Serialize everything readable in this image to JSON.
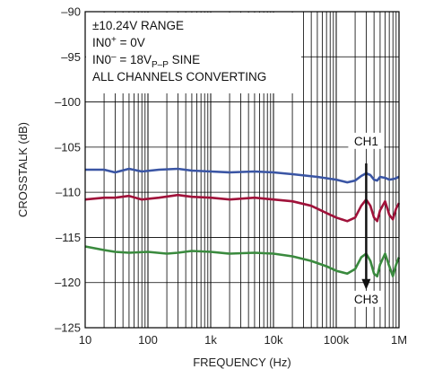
{
  "chart_data": {
    "type": "line",
    "xlabel": "FREQUENCY (Hz)",
    "ylabel": "CROSSTALK (dB)",
    "x_scale": "log",
    "xlim": [
      10,
      1000000
    ],
    "ylim": [
      -125,
      -90
    ],
    "x_ticks": [
      10,
      100,
      1000,
      10000,
      100000,
      1000000
    ],
    "x_tick_labels": [
      "10",
      "100",
      "1k",
      "10k",
      "100k",
      "1M"
    ],
    "y_ticks": [
      -125,
      -120,
      -115,
      -110,
      -105,
      -100,
      -95,
      -90
    ],
    "y_tick_labels": [
      "–125",
      "–120",
      "–115",
      "–110",
      "–105",
      "–100",
      "–95",
      "–90"
    ],
    "grid": true,
    "annotation_lines": [
      {
        "prefix": "±10.24V RANGE"
      },
      {
        "prefix": "IN0",
        "sup": "+",
        "suffix": " = 0V"
      },
      {
        "prefix": "IN0",
        "sup": "–",
        "suffix": " = 18V",
        "sub": "P–P",
        "tail": " SINE"
      },
      {
        "prefix": "ALL CHANNELS CONVERTING"
      }
    ],
    "arrow_labels": {
      "top": "CH1",
      "bottom": "CH3",
      "arrow_x": 300000
    },
    "series": [
      {
        "color": "#3a55a4",
        "points": [
          [
            10,
            -107.5
          ],
          [
            20,
            -107.5
          ],
          [
            30,
            -107.8
          ],
          [
            50,
            -107.4
          ],
          [
            80,
            -107.7
          ],
          [
            150,
            -107.5
          ],
          [
            300,
            -107.4
          ],
          [
            500,
            -107.6
          ],
          [
            1000,
            -107.7
          ],
          [
            2000,
            -107.8
          ],
          [
            5000,
            -107.7
          ],
          [
            10000,
            -107.8
          ],
          [
            20000,
            -108.0
          ],
          [
            50000,
            -108.3
          ],
          [
            100000,
            -108.6
          ],
          [
            150000,
            -108.9
          ],
          [
            200000,
            -108.7
          ],
          [
            250000,
            -108.2
          ],
          [
            300000,
            -107.9
          ],
          [
            350000,
            -108.1
          ],
          [
            400000,
            -108.6
          ],
          [
            450000,
            -108.7
          ],
          [
            500000,
            -108.3
          ],
          [
            600000,
            -108.4
          ],
          [
            700000,
            -108.6
          ],
          [
            850000,
            -108.5
          ],
          [
            1000000,
            -108.3
          ]
        ]
      },
      {
        "color": "#a0123a",
        "points": [
          [
            10,
            -110.8
          ],
          [
            20,
            -110.6
          ],
          [
            30,
            -110.6
          ],
          [
            50,
            -110.4
          ],
          [
            80,
            -110.8
          ],
          [
            150,
            -110.6
          ],
          [
            300,
            -110.3
          ],
          [
            500,
            -110.5
          ],
          [
            1000,
            -110.6
          ],
          [
            2000,
            -110.8
          ],
          [
            5000,
            -110.6
          ],
          [
            10000,
            -110.8
          ],
          [
            20000,
            -111.0
          ],
          [
            40000,
            -111.5
          ],
          [
            70000,
            -112.3
          ],
          [
            100000,
            -112.8
          ],
          [
            150000,
            -113.2
          ],
          [
            200000,
            -112.8
          ],
          [
            250000,
            -111.5
          ],
          [
            300000,
            -110.8
          ],
          [
            350000,
            -111.5
          ],
          [
            400000,
            -112.8
          ],
          [
            450000,
            -113.2
          ],
          [
            500000,
            -112.0
          ],
          [
            600000,
            -111.0
          ],
          [
            700000,
            -112.5
          ],
          [
            800000,
            -113.0
          ],
          [
            900000,
            -111.8
          ],
          [
            1000000,
            -111.2
          ]
        ]
      },
      {
        "color": "#3a8a3e",
        "points": [
          [
            10,
            -116.0
          ],
          [
            20,
            -116.4
          ],
          [
            30,
            -116.6
          ],
          [
            50,
            -116.7
          ],
          [
            100,
            -116.6
          ],
          [
            200,
            -116.8
          ],
          [
            300,
            -116.7
          ],
          [
            500,
            -116.5
          ],
          [
            1000,
            -116.6
          ],
          [
            2000,
            -116.8
          ],
          [
            5000,
            -116.7
          ],
          [
            10000,
            -116.8
          ],
          [
            20000,
            -117.1
          ],
          [
            40000,
            -117.6
          ],
          [
            70000,
            -118.2
          ],
          [
            100000,
            -118.7
          ],
          [
            150000,
            -119.0
          ],
          [
            200000,
            -118.5
          ],
          [
            250000,
            -117.2
          ],
          [
            300000,
            -116.8
          ],
          [
            350000,
            -117.6
          ],
          [
            400000,
            -119.0
          ],
          [
            450000,
            -119.3
          ],
          [
            500000,
            -118.0
          ],
          [
            600000,
            -116.8
          ],
          [
            700000,
            -118.2
          ],
          [
            800000,
            -119.3
          ],
          [
            900000,
            -118.0
          ],
          [
            1000000,
            -117.2
          ]
        ]
      }
    ]
  }
}
